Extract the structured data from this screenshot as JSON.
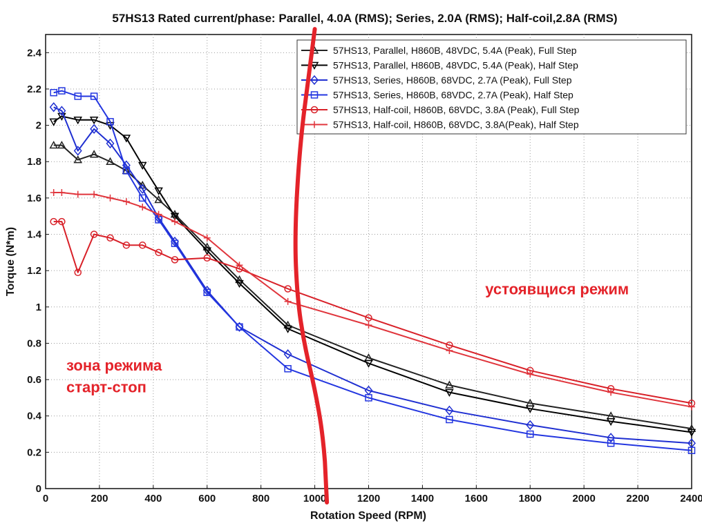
{
  "chart_data": {
    "type": "line",
    "title": "57HS13 Rated current/phase: Parallel, 4.0A (RMS); Series, 2.0A (RMS); Half-coil,2.8A (RMS)",
    "xlabel": "Rotation Speed (RPM)",
    "ylabel": "Torque (N*m)",
    "xlim": [
      0,
      2400
    ],
    "ylim": [
      0,
      2.5
    ],
    "xticks": [
      0,
      200,
      400,
      600,
      800,
      1000,
      1200,
      1400,
      1600,
      1800,
      2000,
      2200,
      2400
    ],
    "yticks": [
      0,
      0.2,
      0.4,
      0.6,
      0.8,
      1,
      1.2,
      1.4,
      1.6,
      1.8,
      2,
      2.2,
      2.4
    ],
    "grid": "dotted",
    "legend_position": "top-right",
    "series": [
      {
        "name": "57HS13, Parallel, H860B, 48VDC, 5.4A (Peak), Full Step",
        "color": "#222222",
        "marker": "triangle-up",
        "x": [
          30,
          60,
          120,
          180,
          240,
          300,
          360,
          420,
          480,
          600,
          720,
          900,
          1200,
          1500,
          1800,
          2100,
          2400
        ],
        "y": [
          1.89,
          1.89,
          1.81,
          1.84,
          1.8,
          1.75,
          1.67,
          1.59,
          1.51,
          1.33,
          1.15,
          0.9,
          0.72,
          0.57,
          0.47,
          0.4,
          0.33
        ]
      },
      {
        "name": "57HS13, Parallel, H860B, 48VDC, 5.4A (Peak), Half Step",
        "color": "#000000",
        "marker": "triangle-down",
        "x": [
          30,
          60,
          120,
          180,
          240,
          300,
          360,
          420,
          480,
          600,
          720,
          900,
          1200,
          1500,
          1800,
          2100,
          2400
        ],
        "y": [
          2.02,
          2.05,
          2.03,
          2.03,
          2.0,
          1.93,
          1.78,
          1.64,
          1.5,
          1.31,
          1.13,
          0.88,
          0.69,
          0.53,
          0.44,
          0.37,
          0.31
        ]
      },
      {
        "name": "57HS13, Series, H860B, 68VDC, 2.7A (Peak), Full Step",
        "color": "#1f2fd1",
        "marker": "diamond",
        "x": [
          30,
          60,
          120,
          180,
          240,
          300,
          360,
          420,
          480,
          600,
          720,
          900,
          1200,
          1500,
          1800,
          2100,
          2400
        ],
        "y": [
          2.1,
          2.08,
          1.86,
          1.98,
          1.9,
          1.78,
          1.65,
          1.49,
          1.36,
          1.09,
          0.89,
          0.74,
          0.54,
          0.43,
          0.35,
          0.28,
          0.25
        ]
      },
      {
        "name": "57HS13, Series, H860B, 68VDC, 2.7A (Peak), Half Step",
        "color": "#2336e0",
        "marker": "square",
        "x": [
          30,
          60,
          120,
          180,
          240,
          300,
          360,
          420,
          480,
          600,
          720,
          900,
          1200,
          1500,
          1800,
          2100,
          2400
        ],
        "y": [
          2.18,
          2.19,
          2.16,
          2.16,
          2.02,
          1.75,
          1.6,
          1.48,
          1.35,
          1.08,
          0.89,
          0.66,
          0.5,
          0.38,
          0.3,
          0.25,
          0.21
        ]
      },
      {
        "name": "57HS13, Half-coil, H860B, 68VDC, 3.8A (Peak), Full Step",
        "color": "#d82028",
        "marker": "circle",
        "x": [
          30,
          60,
          120,
          180,
          240,
          300,
          360,
          420,
          480,
          600,
          720,
          900,
          1200,
          1500,
          1800,
          2100,
          2400
        ],
        "y": [
          1.47,
          1.47,
          1.19,
          1.4,
          1.38,
          1.34,
          1.34,
          1.3,
          1.26,
          1.27,
          1.21,
          1.1,
          0.94,
          0.79,
          0.65,
          0.55,
          0.47
        ]
      },
      {
        "name": "57HS13, Half-coil, H860B, 68VDC, 3.8A(Peak), Half Step",
        "color": "#e0353c",
        "marker": "plus",
        "x": [
          30,
          60,
          120,
          180,
          240,
          300,
          360,
          420,
          480,
          600,
          720,
          900,
          1200,
          1500,
          1800,
          2100,
          2400
        ],
        "y": [
          1.63,
          1.63,
          1.62,
          1.62,
          1.6,
          1.58,
          1.55,
          1.51,
          1.47,
          1.38,
          1.23,
          1.03,
          0.9,
          0.76,
          0.63,
          0.53,
          0.45
        ]
      }
    ],
    "annotations": [
      {
        "text": "устоявщися режим",
        "x": 1900,
        "y": 1.07
      },
      {
        "text": "зона режима",
        "x": 400,
        "y": 0.65
      },
      {
        "text": "старт-стоп",
        "x": 400,
        "y": 0.53
      }
    ],
    "divider": {
      "color": "#e4232a",
      "points": [
        [
          1000,
          2.53
        ],
        [
          980,
          2.3
        ],
        [
          945,
          1.9
        ],
        [
          925,
          1.4
        ],
        [
          935,
          1.05
        ],
        [
          960,
          0.8
        ],
        [
          1000,
          0.55
        ],
        [
          1030,
          0.3
        ],
        [
          1045,
          0.0
        ]
      ]
    }
  }
}
